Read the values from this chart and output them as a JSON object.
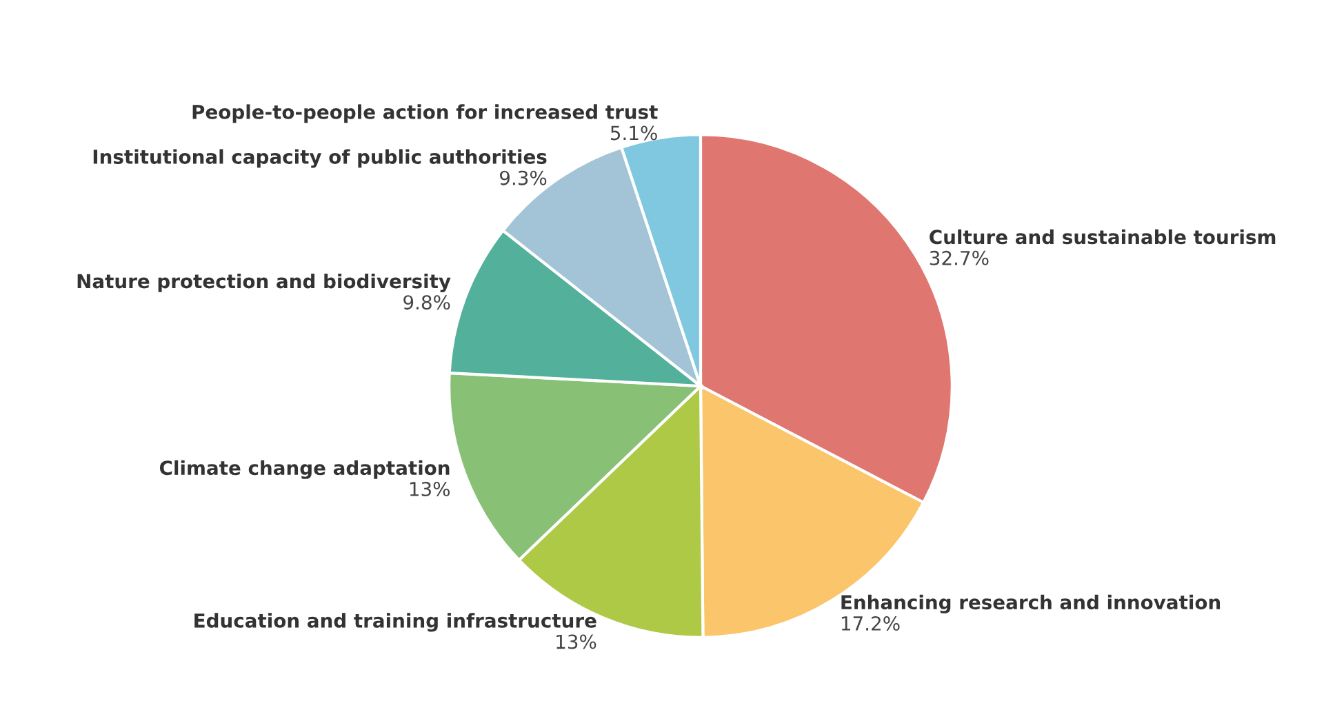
{
  "chart_data": {
    "type": "pie",
    "categories": [
      "Culture and sustainable tourism",
      "Enhancing research and innovation",
      "Education and training infrastructure",
      "Climate change adaptation",
      "Nature protection and biodiversity",
      "Institutional capacity of public authorities",
      "People-to-people action for increased trust"
    ],
    "values": [
      32.7,
      17.2,
      13,
      13,
      9.8,
      9.3,
      5.1
    ],
    "value_labels": [
      "32.7%",
      "17.2%",
      "13%",
      "13%",
      "9.8%",
      "9.3%",
      "5.1%"
    ],
    "colors": [
      "#e07670",
      "#fbc56b",
      "#adc945",
      "#88c175",
      "#52b09b",
      "#a3c4d7",
      "#80c8df"
    ]
  }
}
